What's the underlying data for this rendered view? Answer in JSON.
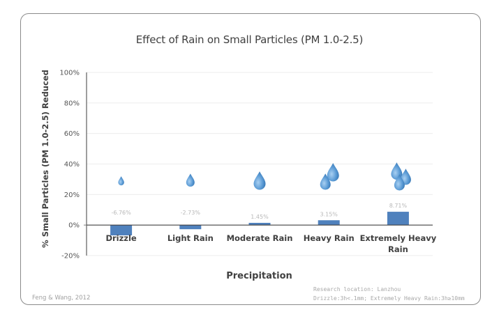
{
  "chart_data": {
    "type": "bar",
    "title": "Effect of Rain on Small Particles (PM 1.0-2.5)",
    "xlabel": "Precipitation",
    "ylabel": "% Small Particles (PM 1.0-2.5) Reduced",
    "categories": [
      "Drizzle",
      "Light Rain",
      "Moderate Rain",
      "Heavy Rain",
      "Extremely Heavy Rain"
    ],
    "category_lines": [
      [
        "Drizzle"
      ],
      [
        "Light Rain"
      ],
      [
        "Moderate Rain"
      ],
      [
        "Heavy Rain"
      ],
      [
        "Extremely Heavy",
        "Rain"
      ]
    ],
    "values": [
      -6.76,
      -2.73,
      1.45,
      3.15,
      8.71
    ],
    "data_labels": [
      "-6.76%",
      "-2.73%",
      "1.45%",
      "3.15%",
      "8.71%"
    ],
    "droplet_counts": [
      1,
      1,
      1,
      2,
      3
    ],
    "ylim": [
      -20,
      100
    ],
    "yticks": [
      100,
      80,
      60,
      40,
      20,
      0,
      -20
    ],
    "ytick_labels": [
      "100%",
      "80%",
      "60%",
      "40%",
      "20%",
      "0%",
      "-20%"
    ],
    "grid": true,
    "legend": "none",
    "bar_color": "#4F81BD",
    "droplet_color": "#5B9BD5"
  },
  "footer": {
    "source": "Feng & Wang, 2012",
    "note_line1": "Research location: Lanzhou",
    "note_line2": "Drizzle:3h<.1mm; Extremely Heavy Rain:3h≥10mm"
  }
}
